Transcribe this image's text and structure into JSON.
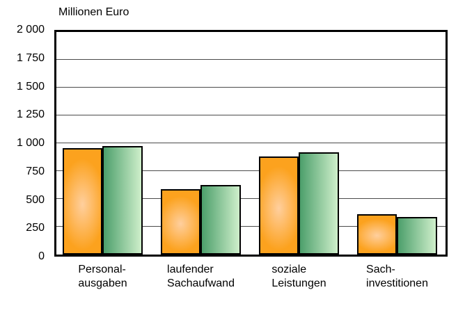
{
  "chart_data": {
    "type": "bar",
    "title": "Millionen Euro",
    "categories": [
      {
        "lines": [
          "Personal-",
          "ausgaben"
        ]
      },
      {
        "lines": [
          "laufender",
          "Sachaufwand"
        ]
      },
      {
        "lines": [
          "soziale",
          "Leistungen"
        ]
      },
      {
        "lines": [
          "Sach-",
          "investitionen"
        ]
      }
    ],
    "series": [
      {
        "name": "series-orange",
        "values": [
          955,
          590,
          880,
          360
        ],
        "fill": {
          "type": "radial",
          "center": "#ffcf9e",
          "edge": "#fca21e"
        }
      },
      {
        "name": "series-green",
        "values": [
          975,
          625,
          920,
          340
        ],
        "fill": {
          "type": "linear-h",
          "from": "#4c9f6b",
          "to": "#cfefcb"
        }
      }
    ],
    "ylim": [
      0,
      2000
    ],
    "ytick_step": 250,
    "y_tick_labels": [
      "2 000",
      "1 750",
      "1 500",
      "1 250",
      "1 000",
      "750",
      "500",
      "250",
      "0"
    ],
    "legend": null,
    "grid": true,
    "colors": {
      "background": "#ffffff",
      "text": "#000000",
      "plot_border": "#000000",
      "gridline": "#4a4a4a",
      "bar_border": "#000000"
    }
  }
}
